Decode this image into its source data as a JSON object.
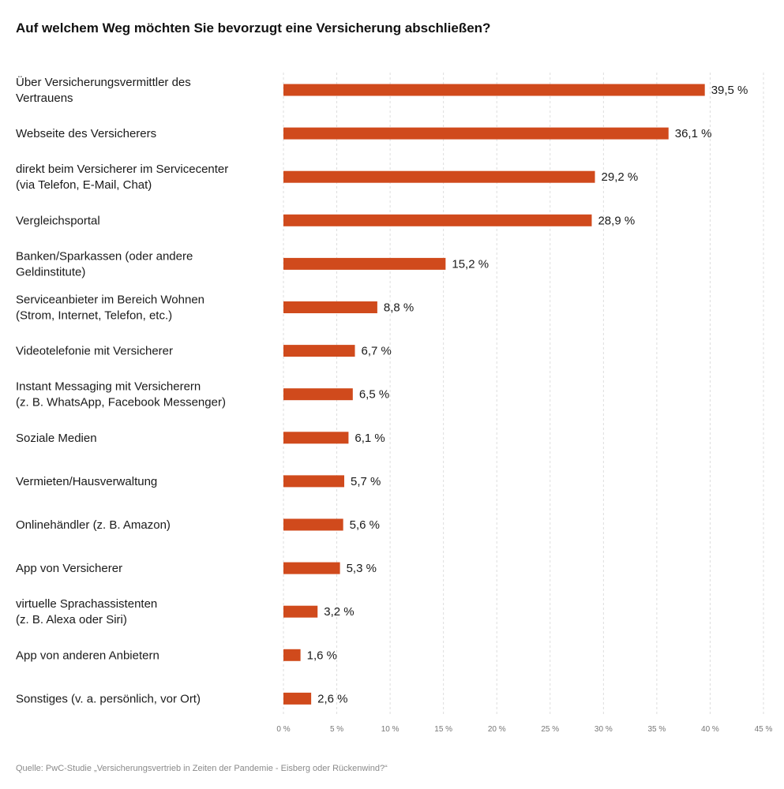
{
  "chart_data": {
    "type": "bar",
    "orientation": "horizontal",
    "title": "Auf welchem Weg möchten Sie bevorzugt eine Versicherung abschließen?",
    "categories": [
      [
        "Über Versicherungsvermittler des",
        "Vertrauens"
      ],
      [
        "Webseite des Versicherers"
      ],
      [
        "direkt beim Versicherer im Servicecenter",
        "(via Telefon, E-Mail, Chat)"
      ],
      [
        "Vergleichsportal"
      ],
      [
        "Banken/Sparkassen (oder andere",
        "Geldinstitute)"
      ],
      [
        "Serviceanbieter im Bereich Wohnen",
        "(Strom, Internet, Telefon, etc.)"
      ],
      [
        "Videotelefonie mit Versicherer"
      ],
      [
        "Instant Messaging mit Versicherern",
        "(z. B. WhatsApp, Facebook Messenger)"
      ],
      [
        "Soziale Medien"
      ],
      [
        "Vermieten/Hausverwaltung"
      ],
      [
        "Onlinehändler (z. B. Amazon)"
      ],
      [
        "App von Versicherer"
      ],
      [
        "virtuelle Sprachassistenten",
        "(z. B. Alexa oder Siri)"
      ],
      [
        "App von anderen Anbietern"
      ],
      [
        "Sonstiges (v. a. persönlich, vor Ort)"
      ]
    ],
    "values": [
      39.5,
      36.1,
      29.2,
      28.9,
      15.2,
      8.8,
      6.7,
      6.5,
      6.1,
      5.7,
      5.6,
      5.3,
      3.2,
      1.6,
      2.6
    ],
    "value_labels": [
      "39,5 %",
      "36,1 %",
      "29,2 %",
      "28,9 %",
      "15,2 %",
      "8,8 %",
      "6,7 %",
      "6,5 %",
      "6,1 %",
      "5,7 %",
      "5,6 %",
      "5,3 %",
      "3,2 %",
      "1,6 %",
      "2,6 %"
    ],
    "xlim": [
      0,
      45
    ],
    "xticks": [
      0,
      5,
      10,
      15,
      20,
      25,
      30,
      35,
      40,
      45
    ],
    "xtick_labels": [
      "0 %",
      "5 %",
      "10 %",
      "15 %",
      "20 %",
      "25 %",
      "30 %",
      "35 %",
      "40 %",
      "45 %"
    ],
    "grid": "vertical dashed",
    "bar_color": "#d04a1c",
    "grid_color": "#dddddd"
  },
  "source": "Quelle: PwC-Studie „Versicherungsvertrieb in Zeiten der Pandemie - Eisberg oder Rückenwind?“"
}
